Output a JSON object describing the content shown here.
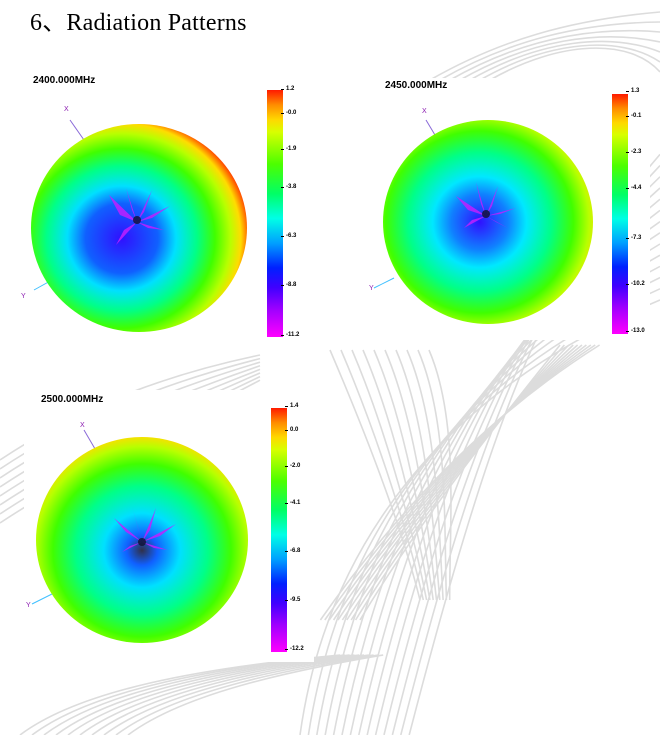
{
  "section_title": "6、Radiation Patterns",
  "colors": {
    "axis_line": "#8a6ad8",
    "axis_y_line": "#40c0ff",
    "axis_label": "#8a1ab0"
  },
  "charts": [
    {
      "frequency": "2400.000MHz",
      "x_axis": "X",
      "y_axis": "Y",
      "ticks": [
        "1.2",
        "-0.0",
        "-1.9",
        "-3.8",
        "-6.3",
        "-8.8",
        "-11.2"
      ]
    },
    {
      "frequency": "2450.000MHz",
      "x_axis": "X",
      "y_axis": "Y",
      "ticks": [
        "1.3",
        "-0.1",
        "-2.3",
        "-4.4",
        "-7.3",
        "-10.2",
        "-13.0"
      ]
    },
    {
      "frequency": "2500.000MHz",
      "x_axis": "X",
      "y_axis": "Y",
      "ticks": [
        "1.4",
        "0.0",
        "-2.0",
        "-4.1",
        "-6.8",
        "-9.5",
        "-12.2"
      ]
    }
  ]
}
